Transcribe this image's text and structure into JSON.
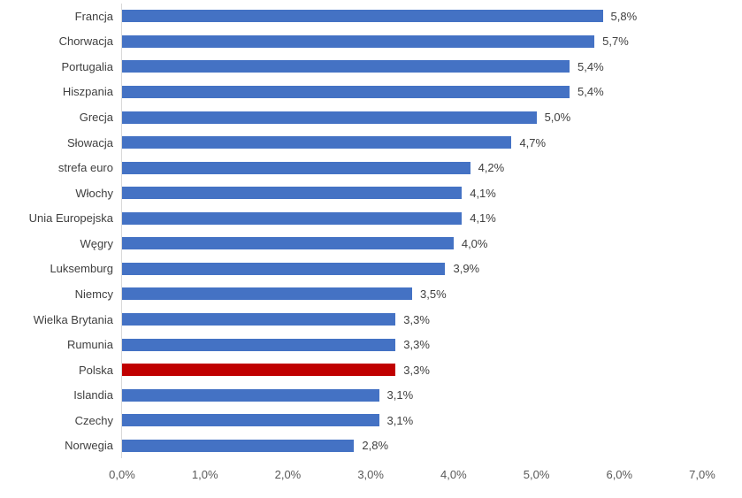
{
  "chart_data": {
    "type": "bar",
    "orientation": "horizontal",
    "title": "",
    "xlabel": "",
    "ylabel": "",
    "categories": [
      "Francja",
      "Chorwacja",
      "Portugalia",
      "Hiszpania",
      "Grecja",
      "Słowacja",
      "strefa euro",
      "Włochy",
      "Unia Europejska",
      "Węgry",
      "Luksemburg",
      "Niemcy",
      "Wielka Brytania",
      "Rumunia",
      "Polska",
      "Islandia",
      "Czechy",
      "Norwegia"
    ],
    "values": [
      5.8,
      5.7,
      5.4,
      5.4,
      5.0,
      4.7,
      4.2,
      4.1,
      4.1,
      4.0,
      3.9,
      3.5,
      3.3,
      3.3,
      3.3,
      3.1,
      3.1,
      2.8
    ],
    "value_labels": [
      "5,8%",
      "5,7%",
      "5,4%",
      "5,4%",
      "5,0%",
      "4,7%",
      "4,2%",
      "4,1%",
      "4,1%",
      "4,0%",
      "3,9%",
      "3,5%",
      "3,3%",
      "3,3%",
      "3,3%",
      "3,1%",
      "3,1%",
      "2,8%"
    ],
    "highlighted_category": "Polska",
    "colors": {
      "bar": "#4472C4",
      "highlight": "#C00000",
      "axis_line": "#d9d9d9",
      "label_text": "#404040",
      "tick_text": "#595959"
    },
    "xlim": [
      0,
      7
    ],
    "x_ticks": [
      "0,0%",
      "1,0%",
      "2,0%",
      "3,0%",
      "4,0%",
      "5,0%",
      "6,0%",
      "7,0%"
    ],
    "grid": false,
    "legend": false
  }
}
